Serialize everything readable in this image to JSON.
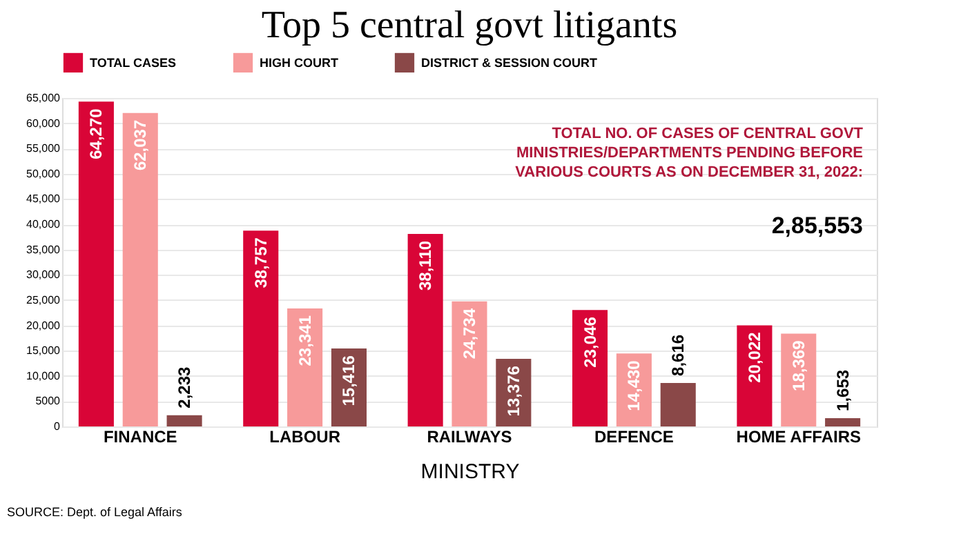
{
  "chart_data": {
    "type": "bar",
    "title": "Top 5 central govt litigants",
    "xlabel": "MINISTRY",
    "categories": [
      "FINANCE",
      "LABOUR",
      "RAILWAYS",
      "DEFENCE",
      "HOME AFFAIRS"
    ],
    "series": [
      {
        "name": "TOTAL CASES",
        "color": "#d90537",
        "values": [
          64270,
          38757,
          38110,
          23046,
          20022
        ],
        "value_labels": [
          "64,270",
          "38,757",
          "38,110",
          "23,046",
          "20,022"
        ]
      },
      {
        "name": "HIGH COURT",
        "color": "#f79a9a",
        "values": [
          62037,
          23341,
          24734,
          14430,
          18369
        ],
        "value_labels": [
          "62,037",
          "23,341",
          "24,734",
          "14,430",
          "18,369"
        ]
      },
      {
        "name": "DISTRICT & SESSION COURT",
        "color": "#8a4848",
        "values": [
          2233,
          15416,
          13376,
          8616,
          1653
        ],
        "value_labels": [
          "2,233",
          "15,416",
          "13,376",
          "8,616",
          "1,653"
        ]
      }
    ],
    "ylim": [
      0,
      65000
    ],
    "yticks": [
      0,
      {
        "value": 5000,
        "label": "5000"
      },
      {
        "value": 10000,
        "label": "10,000"
      },
      {
        "value": 15000,
        "label": "15,000"
      },
      {
        "value": 20000,
        "label": "20,000"
      },
      {
        "value": 25000,
        "label": "25,000"
      },
      {
        "value": 30000,
        "label": "30,000"
      },
      {
        "value": 35000,
        "label": "35,000"
      },
      {
        "value": 40000,
        "label": "40,000"
      },
      {
        "value": 45000,
        "label": "45,000"
      },
      {
        "value": 50000,
        "label": "50,000"
      },
      {
        "value": 55000,
        "label": "55,000"
      },
      {
        "value": 60000,
        "label": "60,000"
      },
      {
        "value": 65000,
        "label": "65,000"
      }
    ],
    "grid": "y",
    "legend": "top",
    "annotations": [
      "TOTAL NO. OF CASES OF CENTRAL GOVT MINISTRIES/DEPARTMENTS PENDING BEFORE VARIOUS COURTS AS ON DECEMBER 31, 2022:",
      "2,85,553",
      "SOURCE: Dept. of Legal Affairs"
    ]
  }
}
